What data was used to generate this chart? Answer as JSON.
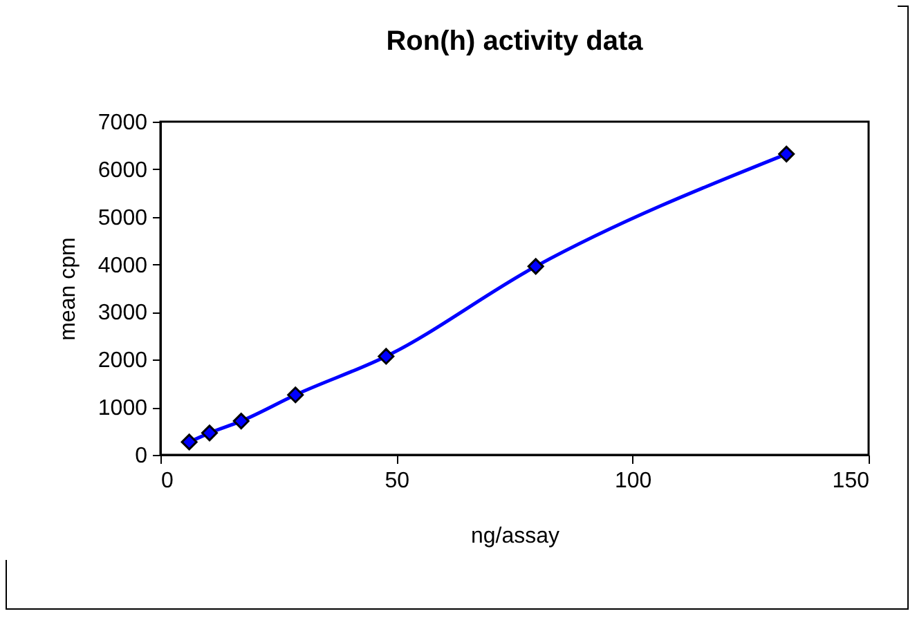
{
  "chart_data": {
    "type": "line",
    "title": "Ron(h) activity data",
    "xlabel": "ng/assay",
    "ylabel": "mean cpm",
    "x": [
      6.1,
      10.4,
      17.1,
      28.6,
      47.8,
      79.5,
      132.6
    ],
    "series": [
      {
        "color": "#0000ff",
        "values": [
          270,
          460,
          710,
          1260,
          2070,
          3960,
          6320
        ]
      }
    ],
    "xlim": [
      0,
      150
    ],
    "xticks": [
      0,
      50,
      100,
      150
    ],
    "ylim": [
      0,
      7000
    ],
    "yticks": [
      0,
      1000,
      2000,
      3000,
      4000,
      5000,
      6000,
      7000
    ],
    "grid": false,
    "legend": false,
    "marker": "diamond",
    "line_style": "solid"
  }
}
